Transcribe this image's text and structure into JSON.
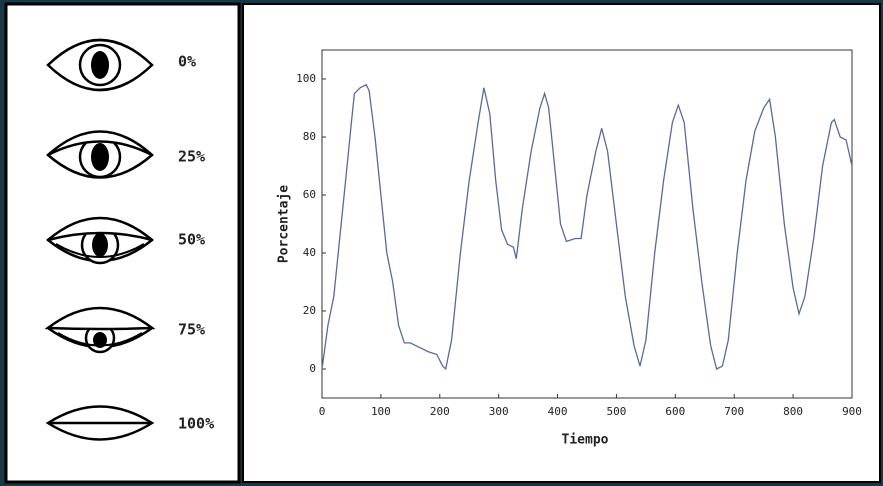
{
  "eye_states": {
    "labels": [
      "0%",
      "25%",
      "50%",
      "75%",
      "100%"
    ]
  },
  "chart_data": {
    "type": "line",
    "x_label": "Tiempo",
    "y_label": "Porcentaje",
    "color": "#5a6a9a",
    "x": [
      0,
      10,
      20,
      30,
      40,
      50,
      55,
      65,
      75,
      80,
      90,
      100,
      110,
      120,
      130,
      140,
      150,
      160,
      170,
      180,
      195,
      205,
      210,
      220,
      235,
      250,
      265,
      275,
      285,
      295,
      305,
      315,
      325,
      330,
      340,
      355,
      370,
      378,
      385,
      395,
      405,
      415,
      430,
      440,
      450,
      465,
      475,
      485,
      500,
      515,
      530,
      540,
      550,
      565,
      580,
      595,
      605,
      615,
      630,
      645,
      660,
      670,
      680,
      690,
      705,
      720,
      735,
      750,
      760,
      770,
      785,
      800,
      810,
      820,
      835,
      850,
      865,
      870,
      880,
      890,
      900
    ],
    "values": [
      0,
      15,
      25,
      45,
      65,
      85,
      95,
      97,
      98,
      96,
      80,
      60,
      40,
      30,
      15,
      9,
      9,
      8,
      7,
      6,
      5,
      1,
      0,
      10,
      40,
      65,
      85,
      97,
      88,
      65,
      48,
      43,
      42,
      38,
      55,
      75,
      90,
      95,
      90,
      70,
      50,
      44,
      45,
      45,
      60,
      75,
      83,
      75,
      50,
      25,
      8,
      1,
      10,
      40,
      65,
      85,
      91,
      85,
      55,
      30,
      8,
      0,
      1,
      10,
      40,
      65,
      82,
      90,
      93,
      80,
      50,
      28,
      19,
      25,
      45,
      70,
      85,
      86,
      80,
      79,
      70
    ],
    "xlim": [
      0,
      900
    ],
    "ylim": [
      -10,
      110
    ],
    "xticks": [
      0,
      100,
      200,
      300,
      400,
      500,
      600,
      700,
      800,
      900
    ],
    "yticks": [
      0,
      20,
      40,
      60,
      80,
      100
    ],
    "grid": false
  }
}
